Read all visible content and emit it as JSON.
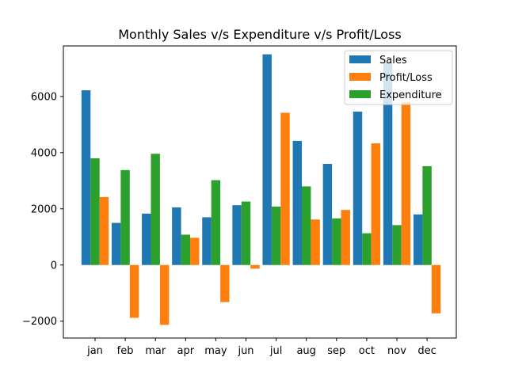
{
  "chart_data": {
    "type": "bar",
    "title": "Monthly Sales v/s Expenditure v/s Profit/Loss",
    "xlabel": "",
    "ylabel": "",
    "categories": [
      "jan",
      "feb",
      "mar",
      "apr",
      "may",
      "jun",
      "jul",
      "aug",
      "sep",
      "oct",
      "nov",
      "dec"
    ],
    "ylim": [
      -2600,
      7800
    ],
    "yticks": [
      -2000,
      0,
      2000,
      4000,
      6000
    ],
    "ytick_labels": [
      "−2000",
      "0",
      "2000",
      "4000",
      "6000"
    ],
    "grid": false,
    "legend_position": "top-right",
    "series": [
      {
        "name": "Sales",
        "color": "#1f77b4",
        "values": [
          6220,
          1500,
          1830,
          2050,
          1700,
          2130,
          7500,
          4420,
          3600,
          5460,
          7220,
          1800
        ]
      },
      {
        "name": "Expenditure",
        "color": "#2ca02c",
        "values": [
          3800,
          3380,
          3960,
          1080,
          3020,
          2260,
          2080,
          2800,
          1660,
          1130,
          1420,
          3520
        ]
      },
      {
        "name": "Profit/Loss",
        "color": "#ff7f0e",
        "values": [
          2420,
          -1880,
          -2130,
          970,
          -1320,
          -130,
          5420,
          1620,
          1960,
          4330,
          5800,
          -1720
        ]
      }
    ],
    "legend_order": [
      "Sales",
      "Profit/Loss",
      "Expenditure"
    ]
  }
}
